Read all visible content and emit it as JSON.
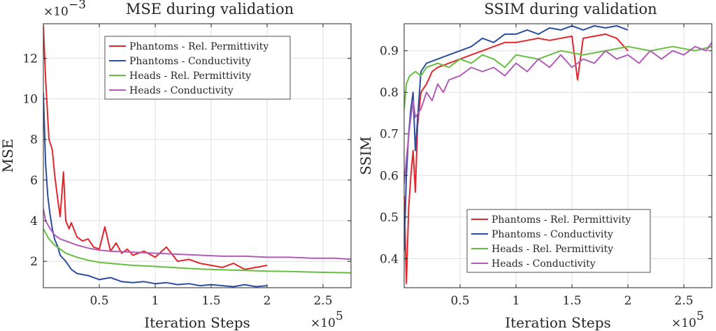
{
  "chart_data": [
    {
      "type": "line",
      "title": "MSE during validation",
      "xlabel": "Iteration Steps",
      "ylabel": "MSE",
      "x_multiplier_label": "×10",
      "x_multiplier_exp": "5",
      "y_multiplier_label": "×10",
      "y_multiplier_exp": "−3",
      "xlim": [
        0,
        2.75
      ],
      "ylim": [
        0.7,
        13.7
      ],
      "xticks": [
        0.5,
        1,
        1.5,
        2,
        2.5
      ],
      "xtick_labels": [
        "0.5",
        "1",
        "1.5",
        "2",
        "2.5"
      ],
      "yticks": [
        2,
        4,
        6,
        8,
        10,
        12
      ],
      "ytick_labels": [
        "2",
        "4",
        "6",
        "8",
        "10",
        "12"
      ],
      "grid": true,
      "legend_position": "top-right",
      "series": [
        {
          "name": "Phantoms - Rel. Permittivity",
          "color": "#e3262b",
          "x": [
            0,
            0.02,
            0.05,
            0.08,
            0.1,
            0.13,
            0.15,
            0.18,
            0.2,
            0.23,
            0.25,
            0.3,
            0.35,
            0.4,
            0.45,
            0.5,
            0.55,
            0.6,
            0.65,
            0.7,
            0.75,
            0.8,
            0.9,
            1.0,
            1.1,
            1.2,
            1.3,
            1.4,
            1.5,
            1.6,
            1.7,
            1.8,
            1.9,
            2.0
          ],
          "y": [
            13.6,
            11.0,
            8.0,
            7.5,
            6.3,
            5.0,
            4.2,
            6.4,
            4.0,
            3.6,
            3.9,
            3.2,
            3.0,
            3.1,
            2.7,
            2.6,
            3.7,
            2.5,
            2.9,
            2.4,
            2.6,
            2.3,
            2.5,
            2.2,
            2.7,
            2.0,
            2.1,
            1.9,
            1.8,
            1.7,
            1.9,
            1.6,
            1.7,
            1.8
          ]
        },
        {
          "name": "Phantoms - Conductivity",
          "color": "#2b4ea2",
          "x": [
            0,
            0.02,
            0.04,
            0.06,
            0.08,
            0.1,
            0.13,
            0.15,
            0.2,
            0.25,
            0.3,
            0.4,
            0.5,
            0.6,
            0.7,
            0.8,
            0.9,
            1.0,
            1.1,
            1.2,
            1.3,
            1.4,
            1.5,
            1.6,
            1.7,
            1.8,
            1.9,
            2.0
          ],
          "y": [
            10.3,
            6.8,
            5.2,
            4.3,
            3.6,
            3.1,
            2.7,
            2.3,
            2.0,
            1.6,
            1.4,
            1.3,
            1.1,
            1.2,
            1.0,
            0.95,
            1.0,
            0.9,
            0.95,
            0.85,
            0.9,
            0.8,
            0.85,
            0.8,
            0.75,
            0.85,
            0.75,
            0.8
          ]
        },
        {
          "name": "Heads - Rel. Permittivity",
          "color": "#66bf40",
          "x": [
            0,
            0.05,
            0.1,
            0.2,
            0.3,
            0.4,
            0.5,
            0.6,
            0.8,
            1.0,
            1.2,
            1.4,
            1.6,
            1.8,
            2.0,
            2.2,
            2.4,
            2.6,
            2.75
          ],
          "y": [
            3.6,
            3.1,
            2.8,
            2.4,
            2.2,
            2.05,
            1.95,
            1.9,
            1.8,
            1.75,
            1.68,
            1.62,
            1.58,
            1.55,
            1.52,
            1.5,
            1.47,
            1.45,
            1.43
          ]
        },
        {
          "name": "Heads - Conductivity",
          "color": "#b25cb8",
          "x": [
            0,
            0.02,
            0.05,
            0.1,
            0.15,
            0.2,
            0.3,
            0.4,
            0.5,
            0.6,
            0.8,
            1.0,
            1.2,
            1.4,
            1.6,
            1.8,
            2.0,
            2.2,
            2.4,
            2.6,
            2.75
          ],
          "y": [
            4.6,
            4.0,
            3.7,
            3.3,
            3.1,
            3.0,
            2.8,
            2.65,
            2.55,
            2.5,
            2.45,
            2.4,
            2.35,
            2.3,
            2.25,
            2.25,
            2.2,
            2.2,
            2.15,
            2.15,
            2.1
          ]
        }
      ]
    },
    {
      "type": "line",
      "title": "SSIM during validation",
      "xlabel": "Iteration Steps",
      "ylabel": "SSIM",
      "x_multiplier_label": "×10",
      "x_multiplier_exp": "5",
      "xlim": [
        0,
        2.75
      ],
      "ylim": [
        0.33,
        0.965
      ],
      "xticks": [
        0.5,
        1,
        1.5,
        2,
        2.5
      ],
      "xtick_labels": [
        "0.5",
        "1",
        "1.5",
        "2",
        "2.5"
      ],
      "yticks": [
        0.4,
        0.5,
        0.6,
        0.7,
        0.8,
        0.9
      ],
      "ytick_labels": [
        "0.4",
        "0.5",
        "0.6",
        "0.7",
        "0.8",
        "0.9"
      ],
      "grid": true,
      "legend_position": "bottom-right",
      "series": [
        {
          "name": "Phantoms - Rel. Permittivity",
          "color": "#e3262b",
          "x": [
            0,
            0.02,
            0.04,
            0.06,
            0.08,
            0.1,
            0.12,
            0.15,
            0.2,
            0.25,
            0.3,
            0.4,
            0.5,
            0.6,
            0.7,
            0.8,
            0.9,
            1.0,
            1.1,
            1.2,
            1.3,
            1.4,
            1.5,
            1.55,
            1.6,
            1.7,
            1.8,
            1.9,
            2.0
          ],
          "y": [
            0.55,
            0.34,
            0.52,
            0.6,
            0.66,
            0.56,
            0.72,
            0.8,
            0.82,
            0.85,
            0.86,
            0.87,
            0.88,
            0.89,
            0.9,
            0.91,
            0.92,
            0.92,
            0.925,
            0.93,
            0.925,
            0.93,
            0.935,
            0.83,
            0.93,
            0.935,
            0.94,
            0.93,
            0.9
          ]
        },
        {
          "name": "Phantoms - Conductivity",
          "color": "#2b4ea2",
          "x": [
            0,
            0.02,
            0.04,
            0.06,
            0.08,
            0.1,
            0.15,
            0.2,
            0.3,
            0.4,
            0.5,
            0.6,
            0.7,
            0.8,
            0.9,
            1.0,
            1.1,
            1.2,
            1.3,
            1.4,
            1.5,
            1.6,
            1.7,
            1.8,
            1.9,
            2.0
          ],
          "y": [
            0.42,
            0.6,
            0.7,
            0.76,
            0.8,
            0.66,
            0.85,
            0.87,
            0.88,
            0.89,
            0.9,
            0.91,
            0.93,
            0.92,
            0.94,
            0.94,
            0.95,
            0.94,
            0.955,
            0.95,
            0.96,
            0.95,
            0.96,
            0.955,
            0.96,
            0.95
          ]
        },
        {
          "name": "Heads - Rel. Permittivity",
          "color": "#66bf40",
          "x": [
            0,
            0.02,
            0.05,
            0.1,
            0.15,
            0.2,
            0.3,
            0.4,
            0.5,
            0.6,
            0.7,
            0.8,
            0.9,
            1.0,
            1.2,
            1.4,
            1.6,
            1.8,
            2.0,
            2.2,
            2.4,
            2.6,
            2.75
          ],
          "y": [
            0.76,
            0.82,
            0.84,
            0.85,
            0.84,
            0.86,
            0.87,
            0.86,
            0.88,
            0.87,
            0.89,
            0.88,
            0.86,
            0.89,
            0.88,
            0.9,
            0.89,
            0.9,
            0.91,
            0.9,
            0.91,
            0.9,
            0.91
          ]
        },
        {
          "name": "Heads - Conductivity",
          "color": "#b25cb8",
          "x": [
            0,
            0.02,
            0.05,
            0.08,
            0.1,
            0.15,
            0.2,
            0.25,
            0.3,
            0.35,
            0.4,
            0.5,
            0.6,
            0.7,
            0.8,
            0.9,
            1.0,
            1.1,
            1.2,
            1.3,
            1.4,
            1.5,
            1.6,
            1.7,
            1.8,
            1.9,
            2.0,
            2.1,
            2.2,
            2.3,
            2.4,
            2.5,
            2.6,
            2.7,
            2.75
          ],
          "y": [
            0.58,
            0.64,
            0.72,
            0.78,
            0.74,
            0.76,
            0.8,
            0.78,
            0.82,
            0.8,
            0.83,
            0.84,
            0.86,
            0.85,
            0.86,
            0.84,
            0.87,
            0.85,
            0.88,
            0.86,
            0.89,
            0.86,
            0.88,
            0.87,
            0.9,
            0.88,
            0.89,
            0.87,
            0.9,
            0.88,
            0.9,
            0.89,
            0.91,
            0.9,
            0.92
          ]
        }
      ]
    }
  ]
}
